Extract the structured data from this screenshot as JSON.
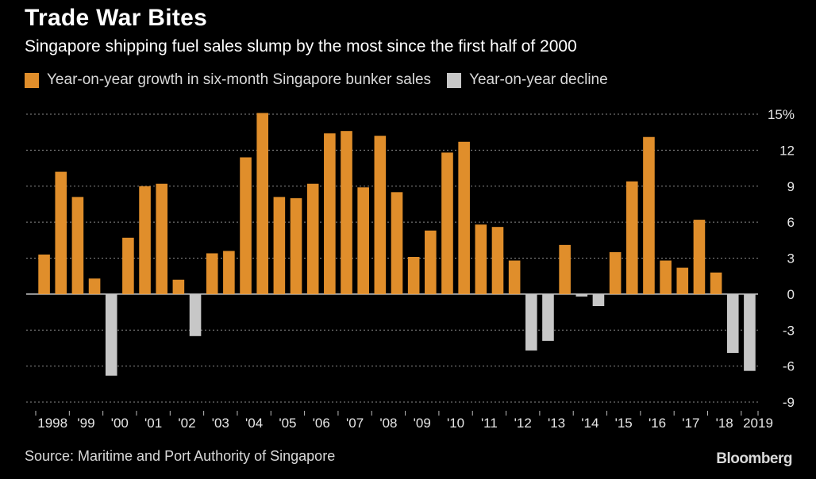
{
  "header": {
    "title": "Trade War Bites",
    "subtitle": "Singapore shipping fuel sales slump by the most since the first half of 2000"
  },
  "legend": {
    "growth_label": "Year-on-year growth in six-month Singapore bunker sales",
    "decline_label": "Year-on-year decline"
  },
  "footer": {
    "source": "Source: Maritime and Port Authority of Singapore",
    "brand": "Bloomberg"
  },
  "colors": {
    "growth": "#e08e2b",
    "decline": "#c7c7c7",
    "grid": "#8a8a8a"
  },
  "chart_data": {
    "type": "bar",
    "title": "Trade War Bites",
    "ylim": [
      -9,
      15
    ],
    "yticks": [
      -9,
      -6,
      -3,
      0,
      3,
      6,
      9,
      12,
      15
    ],
    "ytick_labels": [
      "-9",
      "-6",
      "-3",
      "0",
      "3",
      "6",
      "9",
      "12",
      "15%"
    ],
    "grid": true,
    "legend_position": "top-left",
    "x_labels": [
      "1998",
      "'99",
      "'00",
      "'01",
      "'02",
      "'03",
      "'04",
      "'05",
      "'06",
      "'07",
      "'08",
      "'09",
      "'10",
      "'11",
      "'12",
      "'13",
      "'14",
      "'15",
      "'16",
      "'17",
      "'18",
      "2019"
    ],
    "periods": [
      "1H 1998",
      "2H 1998",
      "1H 1999",
      "2H 1999",
      "1H 2000",
      "2H 2000",
      "1H 2001",
      "2H 2001",
      "1H 2002",
      "2H 2002",
      "1H 2003",
      "2H 2003",
      "1H 2004",
      "2H 2004",
      "1H 2005",
      "2H 2005",
      "1H 2006",
      "2H 2006",
      "1H 2007",
      "2H 2007",
      "1H 2008",
      "2H 2008",
      "1H 2009",
      "2H 2009",
      "1H 2010",
      "2H 2010",
      "1H 2011",
      "2H 2011",
      "1H 2012",
      "2H 2012",
      "1H 2013",
      "2H 2013",
      "1H 2014",
      "2H 2014",
      "1H 2015",
      "2H 2015",
      "1H 2016",
      "2H 2016",
      "1H 2017",
      "2H 2017",
      "1H 2018",
      "2H 2018",
      "1H 2019"
    ],
    "values": [
      3.3,
      10.2,
      8.1,
      1.3,
      -6.8,
      4.7,
      9.0,
      9.2,
      1.2,
      -3.5,
      3.4,
      3.6,
      11.4,
      15.1,
      8.1,
      8.0,
      9.2,
      13.4,
      13.6,
      8.9,
      13.2,
      8.5,
      3.1,
      5.3,
      11.8,
      12.7,
      5.8,
      5.6,
      2.8,
      -4.7,
      -3.9,
      4.1,
      -0.2,
      -1.0,
      3.5,
      9.4,
      13.1,
      2.8,
      2.2,
      6.2,
      1.8,
      -4.9,
      -6.4
    ]
  }
}
